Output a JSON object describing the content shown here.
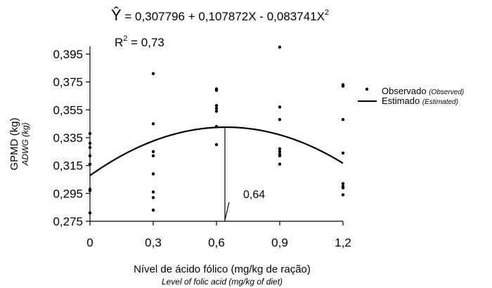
{
  "chart_data": {
    "type": "scatter",
    "equation": {
      "yhat": "Ŷ",
      "body": " = 0,307796 + 0,107872X - 0,083741X",
      "exp": "2"
    },
    "r2": {
      "base": "R",
      "exp": "2",
      "rest": " = 0,73"
    },
    "xlabel": "Nível de ácido fólico (mg/kg de ração)",
    "xlabel_en": "Level of folic acid (mg/kg of diet)",
    "ylabel": "GPMD (kg)",
    "ylabel_en": "ADWG (kg)",
    "xlim": [
      0,
      1.2
    ],
    "ylim": [
      0.275,
      0.395
    ],
    "x_ticks": [
      0,
      0.3,
      0.6,
      0.9,
      1.2
    ],
    "x_tick_labels": [
      "0",
      "0,3",
      "0,6",
      "0,9",
      "1,2"
    ],
    "y_ticks": [
      0.275,
      0.295,
      0.315,
      0.335,
      0.355,
      0.375,
      0.395
    ],
    "y_tick_labels": [
      "0,275",
      "0,295",
      "0,315",
      "0,335",
      "0,355",
      "0,375",
      "0,395"
    ],
    "grid": false,
    "legend_position": "right",
    "series": [
      {
        "name": "Observado",
        "name_en": "(Observed)",
        "kind": "scatter",
        "points": [
          [
            0,
            0.338
          ],
          [
            0,
            0.331
          ],
          [
            0,
            0.328
          ],
          [
            0,
            0.322
          ],
          [
            0,
            0.316
          ],
          [
            0,
            0.298
          ],
          [
            0,
            0.297
          ],
          [
            0,
            0.281
          ],
          [
            0.3,
            0.381
          ],
          [
            0.3,
            0.345
          ],
          [
            0.3,
            0.325
          ],
          [
            0.3,
            0.322
          ],
          [
            0.3,
            0.309
          ],
          [
            0.3,
            0.296
          ],
          [
            0.3,
            0.292
          ],
          [
            0.3,
            0.283
          ],
          [
            0.6,
            0.37
          ],
          [
            0.6,
            0.369
          ],
          [
            0.6,
            0.358
          ],
          [
            0.6,
            0.356
          ],
          [
            0.6,
            0.354
          ],
          [
            0.6,
            0.343
          ],
          [
            0.6,
            0.33
          ],
          [
            0.9,
            0.4
          ],
          [
            0.9,
            0.357
          ],
          [
            0.9,
            0.348
          ],
          [
            0.9,
            0.327
          ],
          [
            0.9,
            0.325
          ],
          [
            0.9,
            0.323
          ],
          [
            0.9,
            0.322
          ],
          [
            0.9,
            0.316
          ],
          [
            1.2,
            0.373
          ],
          [
            1.2,
            0.372
          ],
          [
            1.2,
            0.348
          ],
          [
            1.2,
            0.324
          ],
          [
            1.2,
            0.302
          ],
          [
            1.2,
            0.3
          ],
          [
            1.2,
            0.299
          ],
          [
            1.2,
            0.294
          ]
        ]
      },
      {
        "name": "Estimado",
        "name_en": "(Estimated)",
        "kind": "line",
        "intercept": 0.307796,
        "b1": 0.107872,
        "b2": -0.083741
      }
    ],
    "annotation": {
      "label": "0,64",
      "x": 0.64
    }
  }
}
